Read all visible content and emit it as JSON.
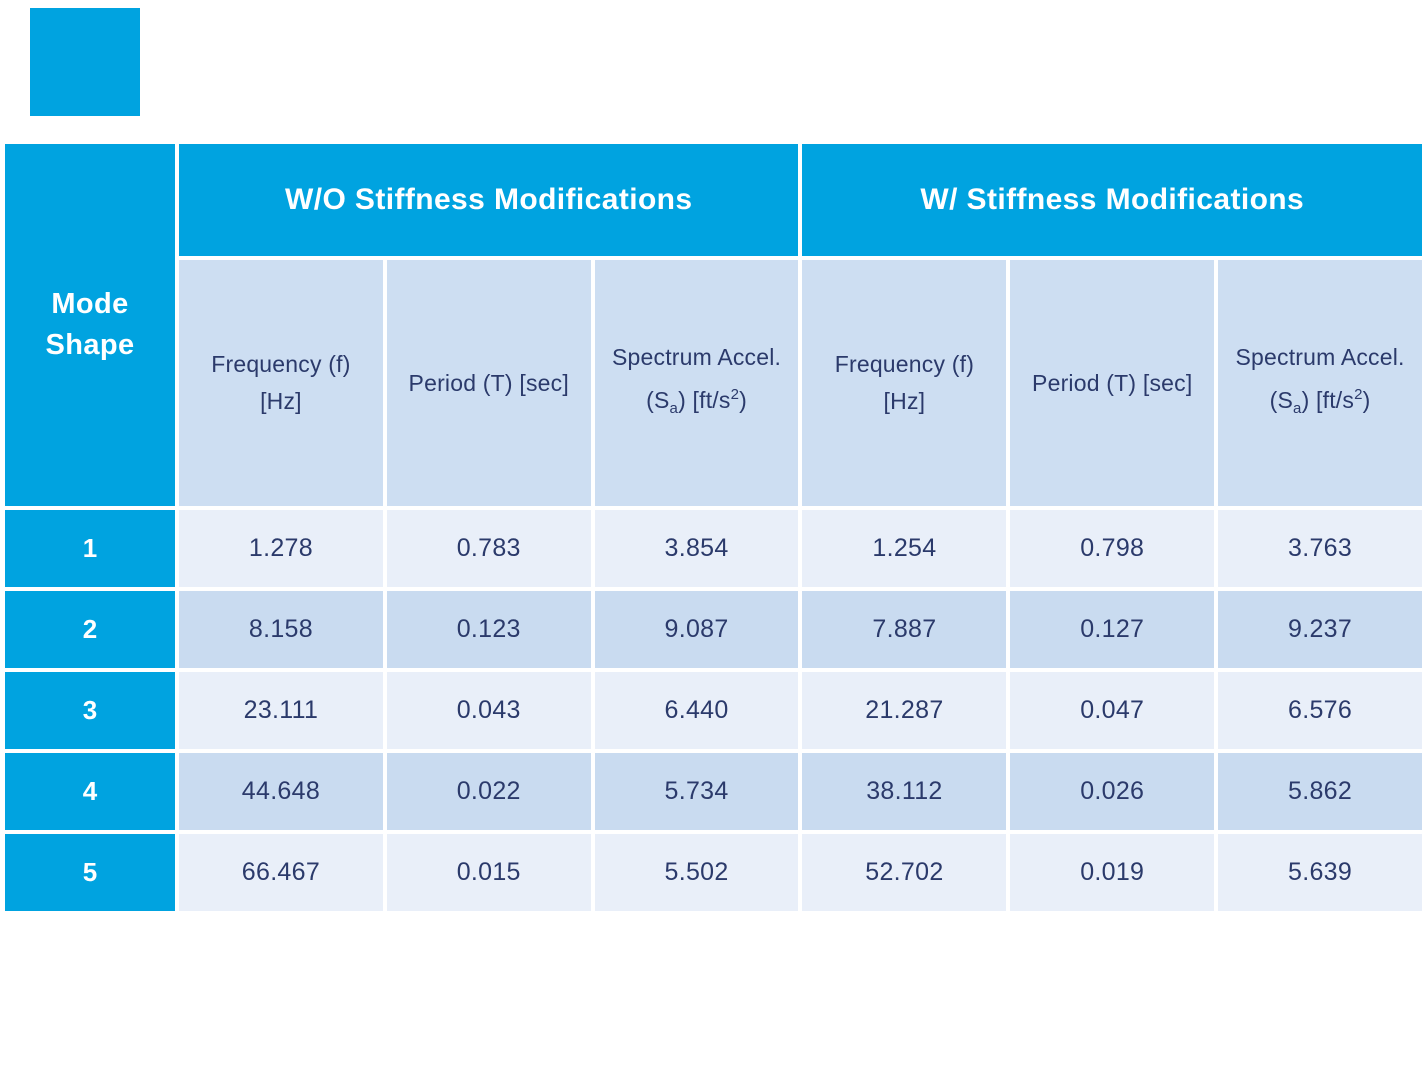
{
  "colors": {
    "accent": "#00A3E0",
    "subheadBg": "#CDDEF2",
    "rowOdd": "#E9EFF9",
    "rowEven": "#C9DBF0",
    "textNavy": "#2B3A6B"
  },
  "table": {
    "corner": {
      "line1": "Mode",
      "line2": "Shape"
    },
    "groups": [
      {
        "label": "W/O Stiffness Modifications"
      },
      {
        "label": "W/ Stiffness Modifications"
      }
    ],
    "subcolumns": {
      "freq": {
        "line1": "Frequency (f)",
        "line2": "[Hz]"
      },
      "period": {
        "label": "Period (T) [sec]"
      },
      "sa": {
        "line1": "Spectrum Accel.",
        "pre": "(S",
        "sub": "a",
        "mid": ") [ft/s",
        "sup": "2",
        "post": ")"
      }
    },
    "rows": [
      {
        "mode": "1",
        "wo_freq": "1.278",
        "wo_period": "0.783",
        "wo_sa": "3.854",
        "w_freq": "1.254",
        "w_period": "0.798",
        "w_sa": "3.763"
      },
      {
        "mode": "2",
        "wo_freq": "8.158",
        "wo_period": "0.123",
        "wo_sa": "9.087",
        "w_freq": "7.887",
        "w_period": "0.127",
        "w_sa": "9.237"
      },
      {
        "mode": "3",
        "wo_freq": "23.111",
        "wo_period": "0.043",
        "wo_sa": "6.440",
        "w_freq": "21.287",
        "w_period": "0.047",
        "w_sa": "6.576"
      },
      {
        "mode": "4",
        "wo_freq": "44.648",
        "wo_period": "0.022",
        "wo_sa": "5.734",
        "w_freq": "38.112",
        "w_period": "0.026",
        "w_sa": "5.862"
      },
      {
        "mode": "5",
        "wo_freq": "66.467",
        "wo_period": "0.015",
        "wo_sa": "5.502",
        "w_freq": "52.702",
        "w_period": "0.019",
        "w_sa": "5.639"
      }
    ]
  },
  "chart_data": {
    "type": "table",
    "row_header": "Mode Shape",
    "column_groups": [
      "W/O Stiffness Modifications",
      "W/ Stiffness Modifications"
    ],
    "columns": [
      "Mode Shape",
      "W/O Frequency (f) [Hz]",
      "W/O Period (T) [sec]",
      "W/O Spectrum Accel. (Sa) [ft/s2]",
      "W/ Frequency (f) [Hz]",
      "W/ Period (T) [sec]",
      "W/ Spectrum Accel. (Sa) [ft/s2]"
    ],
    "rows": [
      [
        1,
        1.278,
        0.783,
        3.854,
        1.254,
        0.798,
        3.763
      ],
      [
        2,
        8.158,
        0.123,
        9.087,
        7.887,
        0.127,
        9.237
      ],
      [
        3,
        23.111,
        0.043,
        6.44,
        21.287,
        0.047,
        6.576
      ],
      [
        4,
        44.648,
        0.022,
        5.734,
        38.112,
        0.026,
        5.862
      ],
      [
        5,
        66.467,
        0.015,
        5.502,
        52.702,
        0.019,
        5.639
      ]
    ]
  }
}
